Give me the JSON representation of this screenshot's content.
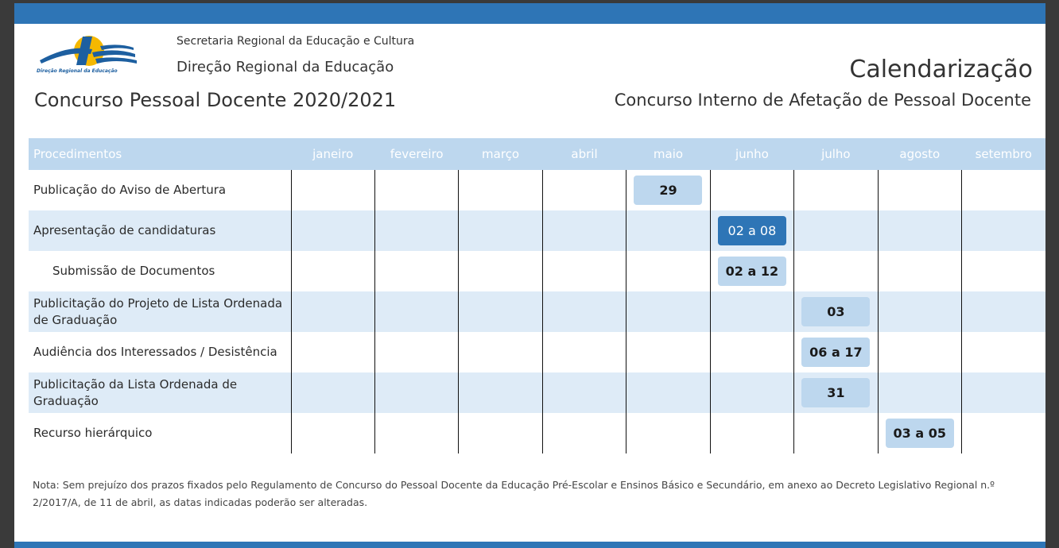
{
  "header": {
    "logo_text": "Direção Regional da Educação",
    "org_line1": "Secretaria Regional da Educação e Cultura",
    "org_line2": "Direção Regional da Educação",
    "contest_title": "Concurso Pessoal Docente 2020/2021",
    "calendar_title": "Calendarização",
    "calendar_subtitle": "Concurso Interno de Afetação de Pessoal Docente"
  },
  "table": {
    "header_label": "Procedimentos",
    "months": [
      "janeiro",
      "fevereiro",
      "março",
      "abril",
      "maio",
      "junho",
      "julho",
      "agosto",
      "setembro"
    ],
    "rows": [
      {
        "label": "Publicação do Aviso de Abertura",
        "month": "maio",
        "date": "29",
        "style": "light"
      },
      {
        "label": "Apresentação de candidaturas",
        "month": "junho",
        "date": "02 a 08",
        "style": "dark"
      },
      {
        "label": "Submissão de Documentos",
        "month": "junho",
        "date": "02 a 12",
        "style": "light"
      },
      {
        "label": "Publicitação do Projeto de Lista Ordenada de Graduação",
        "month": "julho",
        "date": "03",
        "style": "light"
      },
      {
        "label": "Audiência dos Interessados / Desistência",
        "month": "julho",
        "date": "06 a 17",
        "style": "light"
      },
      {
        "label": "Publicitação da Lista Ordenada de Graduação",
        "month": "julho",
        "date": "31",
        "style": "light"
      },
      {
        "label": "Recurso hierárquico",
        "month": "agosto",
        "date": "03 a 05",
        "style": "light"
      }
    ]
  },
  "note": "Nota: Sem prejuízo dos prazos fixados pelo Regulamento de Concurso do Pessoal Docente da Educação Pré-Escolar e Ensinos Básico e Secundário, em anexo ao Decreto Legislativo Regional n.º 2/2017/A, de 11 de abril, as datas indicadas poderão ser alteradas.",
  "colors": {
    "accent": "#2e75b6",
    "header_bg": "#bdd7ee",
    "row_alt": "#deebf7"
  }
}
